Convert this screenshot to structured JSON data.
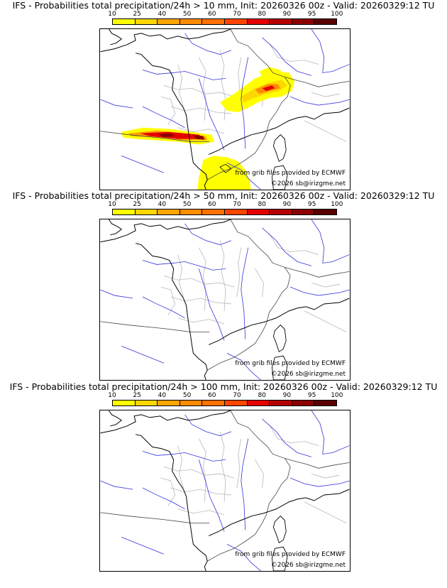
{
  "panels": [
    {
      "title": "IFS - Probabilities total precipitation/24h > 10 mm, Init: 20260326 00z - Valid: 20260329:12 TU",
      "has_rain": true
    },
    {
      "title": "IFS - Probabilities total precipitation/24h > 50 mm, Init: 20260326 00z - Valid: 20260329:12 TU",
      "has_rain": false
    },
    {
      "title": "IFS - Probabilities total precipitation/24h > 100 mm, Init: 20260326 00z - Valid: 20260329:12 TU",
      "has_rain": false
    }
  ],
  "colorbar": {
    "labels": [
      "10",
      "25",
      "40",
      "50",
      "60",
      "70",
      "80",
      "90",
      "95",
      "100"
    ],
    "colors": [
      "#ffff00",
      "#ffd700",
      "#ffa500",
      "#ff8c00",
      "#ff7000",
      "#ff4500",
      "#e60000",
      "#b40000",
      "#8b0000",
      "#5a0000"
    ]
  },
  "credits": {
    "source": "from grib files provided by ECMWF",
    "copyright": "©2026 sb@irizgme.net"
  }
}
